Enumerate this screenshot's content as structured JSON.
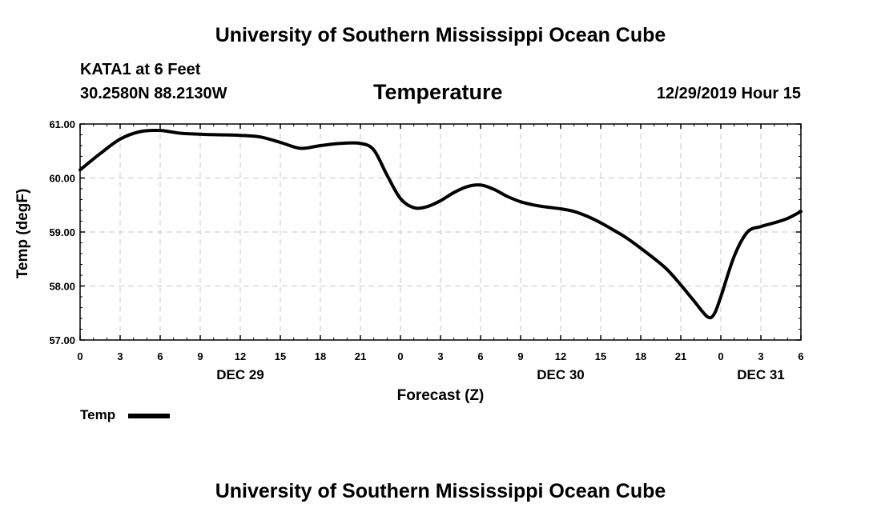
{
  "header": {
    "org_title": "University of Southern Mississippi Ocean Cube",
    "station": "KATA1 at 6 Feet",
    "coords": "30.2580N 88.2130W",
    "chart_title": "Temperature",
    "datetime": "12/29/2019 Hour 15"
  },
  "footer": {
    "org_title": "University of Southern Mississippi Ocean Cube"
  },
  "legend": {
    "label": "Temp",
    "color": "#000000"
  },
  "chart_data": {
    "type": "line",
    "title": "Temperature",
    "xlabel": "Forecast (Z)",
    "ylabel": "Temp (degF)",
    "ylim": [
      57.0,
      61.0
    ],
    "y_ticks": [
      "57.00",
      "58.00",
      "59.00",
      "60.00",
      "61.00"
    ],
    "y_tick_values": [
      57,
      58,
      59,
      60,
      61
    ],
    "xlim": [
      0,
      54
    ],
    "x_tick_values": [
      0,
      3,
      6,
      9,
      12,
      15,
      18,
      21,
      24,
      27,
      30,
      33,
      36,
      39,
      42,
      45,
      48,
      51,
      54
    ],
    "x_tick_labels": [
      "0",
      "3",
      "6",
      "9",
      "12",
      "15",
      "18",
      "21",
      "0",
      "3",
      "6",
      "9",
      "12",
      "15",
      "18",
      "21",
      "0",
      "3",
      "6"
    ],
    "day_labels": [
      {
        "x": 12,
        "label": "DEC 29"
      },
      {
        "x": 36,
        "label": "DEC 30"
      },
      {
        "x": 51,
        "label": "DEC 31"
      }
    ],
    "grid": true,
    "series": [
      {
        "name": "Temp",
        "color": "#000000",
        "x": [
          0,
          1.5,
          3,
          4.5,
          6,
          7.5,
          9,
          10.5,
          12,
          13.5,
          15,
          16.5,
          18,
          19.5,
          21,
          22,
          23,
          24,
          25,
          26,
          27,
          28,
          29,
          30,
          31,
          32,
          33,
          34,
          35,
          36,
          37,
          38,
          39,
          40,
          41,
          42,
          43,
          44,
          45,
          46,
          47,
          47.5,
          48,
          49,
          50,
          51,
          52,
          53,
          54
        ],
        "y": [
          60.15,
          60.45,
          60.72,
          60.86,
          60.88,
          60.83,
          60.81,
          60.8,
          60.79,
          60.76,
          60.66,
          60.55,
          60.6,
          60.64,
          60.64,
          60.52,
          60.05,
          59.62,
          59.45,
          59.47,
          59.58,
          59.73,
          59.84,
          59.87,
          59.79,
          59.66,
          59.56,
          59.5,
          59.46,
          59.43,
          59.38,
          59.29,
          59.17,
          59.03,
          58.88,
          58.7,
          58.51,
          58.3,
          58.02,
          57.72,
          57.43,
          57.48,
          57.8,
          58.55,
          59.0,
          59.1,
          59.17,
          59.25,
          59.38
        ]
      }
    ]
  }
}
